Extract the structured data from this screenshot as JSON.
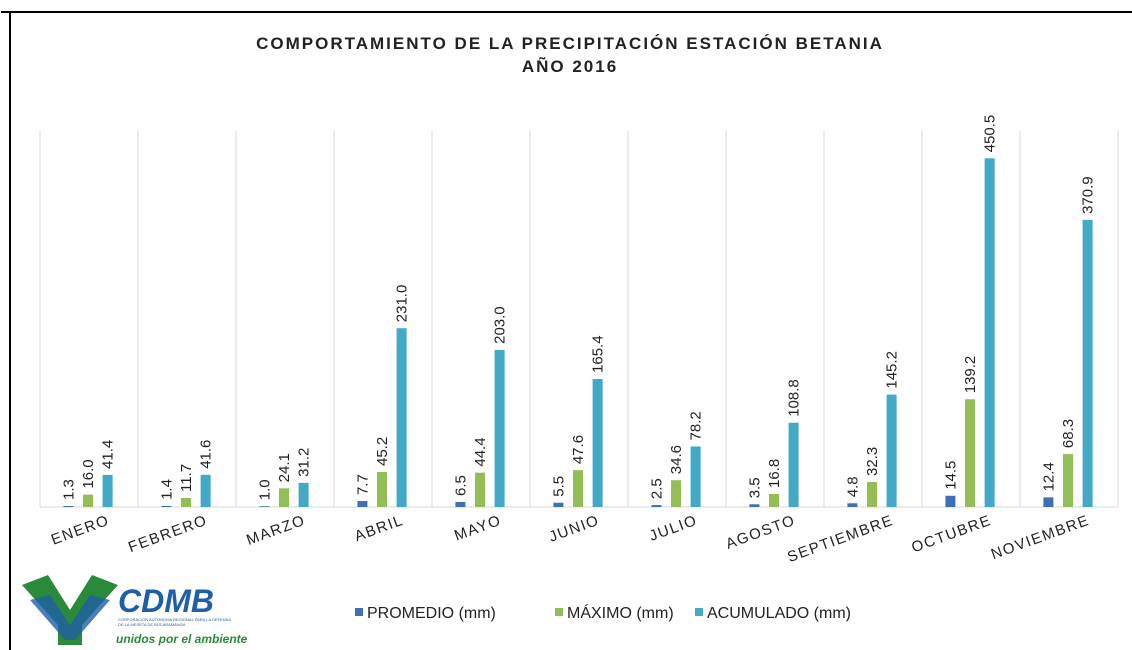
{
  "chart_data": {
    "type": "bar",
    "title": "COMPORTAMIENTO DE LA PRECIPITACIÓN ESTACIÓN BETANIA",
    "subtitle": "AÑO 2016",
    "categories": [
      "ENERO",
      "FEBRERO",
      "MARZO",
      "ABRIL",
      "MAYO",
      "JUNIO",
      "JULIO",
      "AGOSTO",
      "SEPTIEMBRE",
      "OCTUBRE",
      "NOVIEMBRE"
    ],
    "series": [
      {
        "name": "PROMEDIO (mm)",
        "color": "#3f6fb6",
        "values": [
          1.3,
          1.4,
          1.0,
          7.7,
          6.5,
          5.5,
          2.5,
          3.5,
          4.8,
          14.5,
          12.4
        ],
        "value_labels": [
          "1.3",
          "1.4",
          "1.0",
          "7.7",
          "6.5",
          "5.5",
          "2.5",
          "3.5",
          "4.8",
          "14.5",
          "12.4"
        ]
      },
      {
        "name": "MÁXIMO (mm)",
        "color": "#93bd55",
        "values": [
          16.0,
          11.7,
          24.1,
          45.2,
          44.4,
          47.6,
          34.6,
          16.8,
          32.3,
          139.2,
          68.3
        ],
        "value_labels": [
          "16.0",
          "11.7",
          "24.1",
          "45.2",
          "44.4",
          "47.6",
          "34.6",
          "16.8",
          "32.3",
          "139.2",
          "68.3"
        ]
      },
      {
        "name": "ACUMULADO (mm)",
        "color": "#42a9c6",
        "values": [
          41.4,
          41.6,
          31.2,
          231.0,
          203.0,
          165.4,
          78.2,
          108.8,
          145.2,
          450.5,
          370.9
        ],
        "value_labels": [
          "41.4",
          "41.6",
          "31.2",
          "231.0",
          "203.0",
          "165.4",
          "78.2",
          "108.8",
          "145.2",
          "450.5",
          "370.9"
        ]
      }
    ],
    "ylim": [
      0,
      500
    ],
    "legend": "bottom"
  },
  "logo": {
    "name": "CDMB",
    "subtitle": "CORPORACIÓN AUTÓNOMA REGIONAL PARA LA DEFENSA DE LA MESETA DE BUCARAMANGA",
    "slogan": "unidos por el ambiente"
  }
}
